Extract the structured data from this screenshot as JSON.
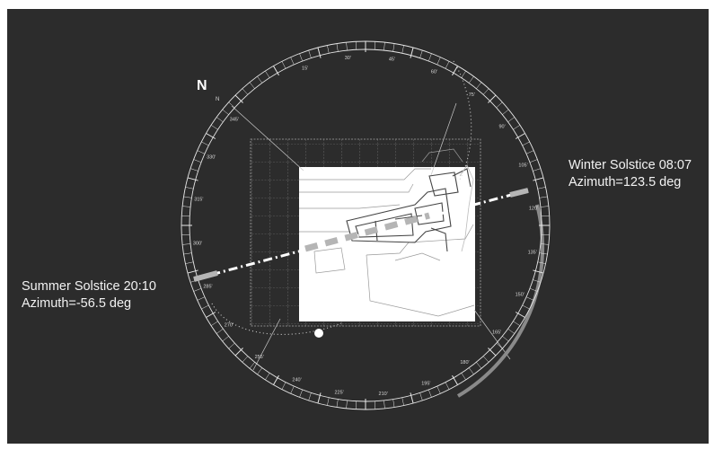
{
  "north_label": "N",
  "north_tick_label": "N",
  "winter": {
    "line1": "Winter Solstice 08:07",
    "line2": "Azimuth=123.5 deg"
  },
  "summer": {
    "line1": "Summer Solstice 20:10",
    "line2": "Azimuth=-56.5 deg"
  },
  "compass_labels": [
    "15'",
    "30'",
    "45'",
    "60'",
    "75'",
    "90'",
    "105'",
    "120'",
    "135'",
    "150'",
    "165'",
    "180'",
    "195'",
    "210'",
    "225'",
    "240'",
    "255'",
    "270'",
    "285'",
    "300'",
    "315'",
    "330'",
    "345'"
  ],
  "colors": {
    "background": "#2c2c2c",
    "ring": "#e8e8e8",
    "sun_path": "#c8c8c8",
    "winter_arc": "#8a8a8a"
  }
}
